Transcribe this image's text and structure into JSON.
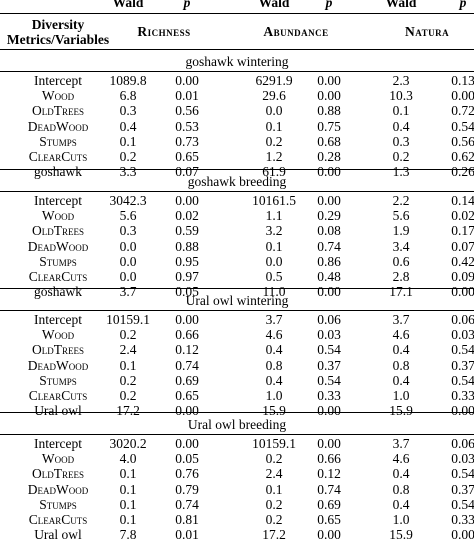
{
  "header": {
    "wald": "Wald",
    "p": "p",
    "metrics_label_line1": "Diversity",
    "metrics_label_line2": "Metrics/Variables",
    "richness": "Richness",
    "abundance": "Abundance",
    "natura": "Natura"
  },
  "sections": [
    {
      "title": "goshawk wintering",
      "rows": [
        {
          "variable": "Intercept",
          "smallcaps": false,
          "values": [
            "1089.8",
            "0.00",
            "6291.9",
            "0.00",
            "2.3",
            "0.13"
          ]
        },
        {
          "variable": "Wood",
          "smallcaps": true,
          "values": [
            "6.8",
            "0.01",
            "29.6",
            "0.00",
            "10.3",
            "0.00"
          ]
        },
        {
          "variable": "OldTrees",
          "smallcaps": true,
          "values": [
            "0.3",
            "0.56",
            "0.0",
            "0.88",
            "0.1",
            "0.72"
          ]
        },
        {
          "variable": "DeadWood",
          "smallcaps": true,
          "values": [
            "0.4",
            "0.53",
            "0.1",
            "0.75",
            "0.4",
            "0.54"
          ]
        },
        {
          "variable": "Stumps",
          "smallcaps": true,
          "values": [
            "0.1",
            "0.73",
            "0.2",
            "0.68",
            "0.3",
            "0.56"
          ]
        },
        {
          "variable": "ClearCuts",
          "smallcaps": true,
          "values": [
            "0.2",
            "0.65",
            "1.2",
            "0.28",
            "0.2",
            "0.62"
          ]
        },
        {
          "variable": "goshawk",
          "smallcaps": false,
          "values": [
            "3.3",
            "0.07",
            "61.9",
            "0.00",
            "1.3",
            "0.26"
          ]
        }
      ]
    },
    {
      "title": "goshawk breeding",
      "rows": [
        {
          "variable": "Intercept",
          "smallcaps": false,
          "values": [
            "3042.3",
            "0.00",
            "10161.5",
            "0.00",
            "2.2",
            "0.14"
          ]
        },
        {
          "variable": "Wood",
          "smallcaps": true,
          "values": [
            "5.6",
            "0.02",
            "1.1",
            "0.29",
            "5.6",
            "0.02"
          ]
        },
        {
          "variable": "OldTrees",
          "smallcaps": true,
          "values": [
            "0.3",
            "0.59",
            "3.2",
            "0.08",
            "1.9",
            "0.17"
          ]
        },
        {
          "variable": "DeadWood",
          "smallcaps": true,
          "values": [
            "0.0",
            "0.88",
            "0.1",
            "0.74",
            "3.4",
            "0.07"
          ]
        },
        {
          "variable": "Stumps",
          "smallcaps": true,
          "values": [
            "0.0",
            "0.95",
            "0.0",
            "0.86",
            "0.6",
            "0.42"
          ]
        },
        {
          "variable": "ClearCuts",
          "smallcaps": true,
          "values": [
            "0.0",
            "0.97",
            "0.5",
            "0.48",
            "2.8",
            "0.09"
          ]
        },
        {
          "variable": "goshawk",
          "smallcaps": false,
          "values": [
            "3.7",
            "0.05",
            "11.0",
            "0.00",
            "17.1",
            "0.00"
          ]
        }
      ]
    },
    {
      "title": "Ural owl wintering",
      "rows": [
        {
          "variable": "Intercept",
          "smallcaps": false,
          "values": [
            "10159.1",
            "0.00",
            "3.7",
            "0.06",
            "3.7",
            "0.06"
          ]
        },
        {
          "variable": "Wood",
          "smallcaps": true,
          "values": [
            "0.2",
            "0.66",
            "4.6",
            "0.03",
            "4.6",
            "0.03"
          ]
        },
        {
          "variable": "OldTrees",
          "smallcaps": true,
          "values": [
            "2.4",
            "0.12",
            "0.4",
            "0.54",
            "0.4",
            "0.54"
          ]
        },
        {
          "variable": "DeadWood",
          "smallcaps": true,
          "values": [
            "0.1",
            "0.74",
            "0.8",
            "0.37",
            "0.8",
            "0.37"
          ]
        },
        {
          "variable": "Stumps",
          "smallcaps": true,
          "values": [
            "0.2",
            "0.69",
            "0.4",
            "0.54",
            "0.4",
            "0.54"
          ]
        },
        {
          "variable": "ClearCuts",
          "smallcaps": true,
          "values": [
            "0.2",
            "0.65",
            "1.0",
            "0.33",
            "1.0",
            "0.33"
          ]
        },
        {
          "variable": "Ural owl",
          "smallcaps": false,
          "values": [
            "17.2",
            "0.00",
            "15.9",
            "0.00",
            "15.9",
            "0.00"
          ]
        }
      ]
    },
    {
      "title": "Ural owl breeding",
      "rows": [
        {
          "variable": "Intercept",
          "smallcaps": false,
          "values": [
            "3020.2",
            "0.00",
            "10159.1",
            "0.00",
            "3.7",
            "0.06"
          ]
        },
        {
          "variable": "Wood",
          "smallcaps": true,
          "values": [
            "4.0",
            "0.05",
            "0.2",
            "0.66",
            "4.6",
            "0.03"
          ]
        },
        {
          "variable": "OldTrees",
          "smallcaps": true,
          "values": [
            "0.1",
            "0.76",
            "2.4",
            "0.12",
            "0.4",
            "0.54"
          ]
        },
        {
          "variable": "DeadWood",
          "smallcaps": true,
          "values": [
            "0.1",
            "0.79",
            "0.1",
            "0.74",
            "0.8",
            "0.37"
          ]
        },
        {
          "variable": "Stumps",
          "smallcaps": true,
          "values": [
            "0.1",
            "0.74",
            "0.2",
            "0.69",
            "0.4",
            "0.54"
          ]
        },
        {
          "variable": "ClearCuts",
          "smallcaps": true,
          "values": [
            "0.1",
            "0.81",
            "0.2",
            "0.65",
            "1.0",
            "0.33"
          ]
        },
        {
          "variable": "Ural owl",
          "smallcaps": false,
          "values": [
            "7.8",
            "0.01",
            "17.2",
            "0.00",
            "15.9",
            "0.00"
          ]
        }
      ]
    }
  ]
}
